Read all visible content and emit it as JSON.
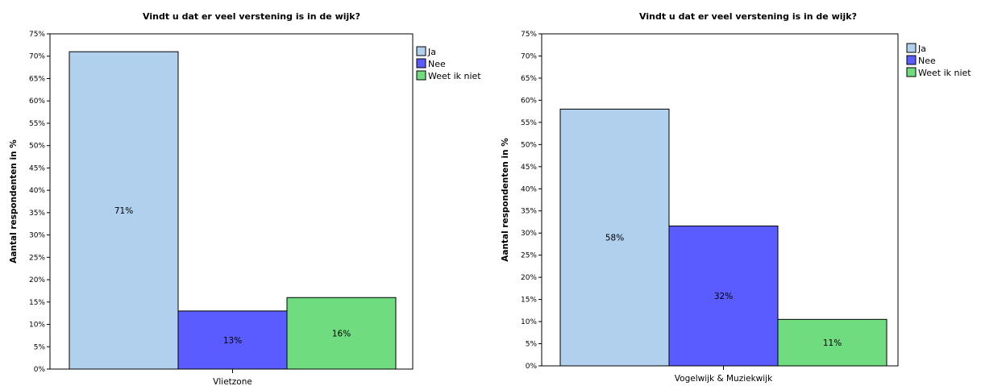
{
  "chart_data": [
    {
      "type": "bar",
      "title": "Vindt u dat er veel verstening is in de wijk?",
      "ylabel": "Aantal respondenten in %",
      "categories": [
        "Vlietzone"
      ],
      "series": [
        {
          "name": "Ja",
          "values": [
            71
          ],
          "label": "71%",
          "color": "#b0d0ee"
        },
        {
          "name": "Nee",
          "values": [
            13
          ],
          "label": "13%",
          "color": "#5a5cff"
        },
        {
          "name": "Weet ik niet",
          "values": [
            16
          ],
          "label": "16%",
          "color": "#70dc80"
        }
      ],
      "ylim": [
        0,
        75
      ],
      "yticks": [
        "0%",
        "5%",
        "10%",
        "15%",
        "20%",
        "25%",
        "30%",
        "35%",
        "40%",
        "45%",
        "50%",
        "55%",
        "60%",
        "65%",
        "70%",
        "75%"
      ],
      "grid": false,
      "legend": "right"
    },
    {
      "type": "bar",
      "title": "Vindt u dat er veel verstening is in de wijk?",
      "ylabel": "Aantal respondenten in %",
      "categories": [
        "Vogelwijk & Muziekwijk"
      ],
      "series": [
        {
          "name": "Ja",
          "values": [
            58
          ],
          "label": "58%",
          "color": "#b0d0ee"
        },
        {
          "name": "Nee",
          "values": [
            31.6
          ],
          "label": "32%",
          "color": "#5a5cff"
        },
        {
          "name": "Weet ik niet",
          "values": [
            10.5
          ],
          "label": "11%",
          "color": "#70dc80"
        }
      ],
      "ylim": [
        0,
        75
      ],
      "yticks": [
        "0%",
        "5%",
        "10%",
        "15%",
        "20%",
        "25%",
        "30%",
        "35%",
        "40%",
        "45%",
        "50%",
        "55%",
        "60%",
        "65%",
        "70%",
        "75%"
      ],
      "grid": false,
      "legend": "right"
    }
  ]
}
